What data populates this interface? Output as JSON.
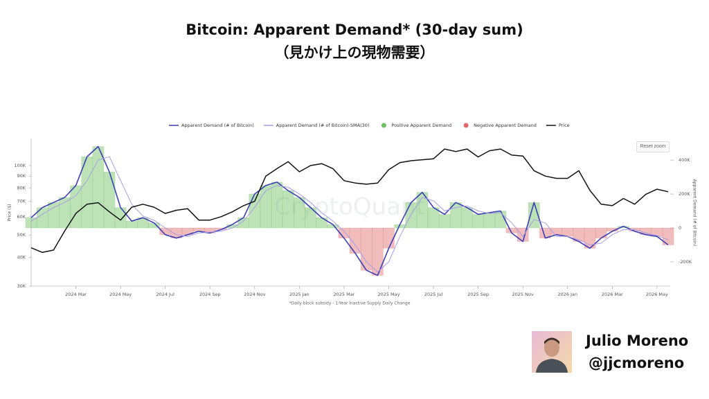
{
  "chart_data": {
    "type": "line",
    "title": "Bitcoin: Apparent Demand* (30-day sum)",
    "subtitle": "（見かけ上の現物需要）",
    "ylabel": "Price ($)",
    "y2label": "Apparent Demand (# of Bitcoin)",
    "footnote": "*Daily block subsidy - 1-Year Inactive Supply Daily Change",
    "watermark": "CryptoQuant",
    "reset_button": "Reset zoom",
    "ylog": true,
    "grid": false,
    "legend": "top",
    "categories": [
      null,
      null,
      null,
      null,
      "2024 Mar",
      null,
      null,
      null,
      "2024 May",
      null,
      null,
      null,
      "2024 Jul",
      null,
      null,
      null,
      "2024 Sep",
      null,
      null,
      null,
      "2024 Nov",
      null,
      null,
      null,
      "2025 Jan",
      null,
      null,
      null,
      "2025 Mar",
      null,
      null,
      null,
      "2025 May",
      null,
      null,
      null,
      "2025 Jul",
      null,
      null,
      null,
      "2025 Sep",
      null,
      null,
      null,
      "2025 Nov",
      null,
      null,
      null,
      "2026 Jan",
      null,
      null,
      null,
      "2026 Mar",
      null,
      null,
      null,
      "2026 May",
      null
    ],
    "ylim": [
      30000,
      131000
    ],
    "yticks": [
      {
        "value": 30000,
        "label": "30K"
      },
      {
        "value": 40000,
        "label": "40K"
      },
      {
        "value": 50000,
        "label": "50K"
      },
      {
        "value": 60000,
        "label": "60K"
      },
      {
        "value": 70000,
        "label": "70K"
      },
      {
        "value": 80000,
        "label": "80K"
      },
      {
        "value": 90000,
        "label": "90K"
      },
      {
        "value": 100000,
        "label": "100K"
      }
    ],
    "y2lim": [
      -343000,
      527000
    ],
    "y2ticks": [
      {
        "value": -200000,
        "label": "-200K"
      },
      0,
      {
        "value": 200000,
        "label": "200K"
      },
      {
        "value": 400000,
        "label": "400K"
      }
    ],
    "series": [
      {
        "name": "Apparent Demand (# of Bitcoin)",
        "color": "#3b3fb6",
        "axis": "y2",
        "values": [
          60000,
          120000,
          150000,
          180000,
          250000,
          420000,
          480000,
          330000,
          120000,
          40000,
          60000,
          30000,
          -40000,
          -60000,
          -40000,
          -20000,
          -30000,
          -10000,
          20000,
          60000,
          200000,
          250000,
          270000,
          220000,
          180000,
          120000,
          60000,
          20000,
          -60000,
          -150000,
          -250000,
          -280000,
          -120000,
          20000,
          150000,
          210000,
          120000,
          80000,
          150000,
          120000,
          80000,
          90000,
          100000,
          -30000,
          -80000,
          150000,
          -60000,
          -40000,
          -50000,
          -80000,
          -120000,
          -60000,
          -20000,
          10000,
          -20000,
          -40000,
          -50000,
          -100000
        ]
      },
      {
        "name": "Apparent Demand (# of Bitcoin)-SMA(30)",
        "color": "#a99be6",
        "axis": "y2",
        "values": [
          40000,
          80000,
          120000,
          150000,
          190000,
          280000,
          400000,
          420000,
          280000,
          140000,
          70000,
          45000,
          0,
          -40000,
          -50000,
          -30000,
          -25000,
          -20000,
          0,
          40000,
          120000,
          220000,
          250000,
          240000,
          200000,
          150000,
          90000,
          40000,
          -20000,
          -100000,
          -200000,
          -260000,
          -200000,
          -50000,
          80000,
          180000,
          160000,
          100000,
          120000,
          130000,
          100000,
          85000,
          90000,
          30000,
          -50000,
          50000,
          30000,
          -50000,
          -50000,
          -70000,
          -100000,
          -90000,
          -40000,
          -10000,
          -10000,
          -30000,
          -45000,
          -70000
        ]
      },
      {
        "name": "Positive Apparent Demand",
        "color": "#6abf5e"
      },
      {
        "name": "Negative Apparent Demand",
        "color": "#e06a6a"
      },
      {
        "name": "Price",
        "color": "#111111",
        "values": [
          44000,
          42000,
          43000,
          52000,
          62000,
          68000,
          69000,
          63000,
          58000,
          66000,
          68000,
          66000,
          62000,
          64000,
          65000,
          58000,
          58000,
          60000,
          63000,
          67000,
          70000,
          90000,
          97000,
          104000,
          94000,
          100000,
          102000,
          97000,
          86000,
          84000,
          83000,
          84000,
          96000,
          103000,
          105000,
          106000,
          107000,
          118000,
          115000,
          118000,
          109000,
          116000,
          118000,
          111000,
          110000,
          95000,
          90000,
          88000,
          88000,
          95000,
          78000,
          68000,
          67000,
          72000,
          68000,
          75000,
          79000,
          77000
        ]
      }
    ]
  },
  "author": {
    "name": "Julio Moreno",
    "handle": "@jjcmoreno"
  }
}
